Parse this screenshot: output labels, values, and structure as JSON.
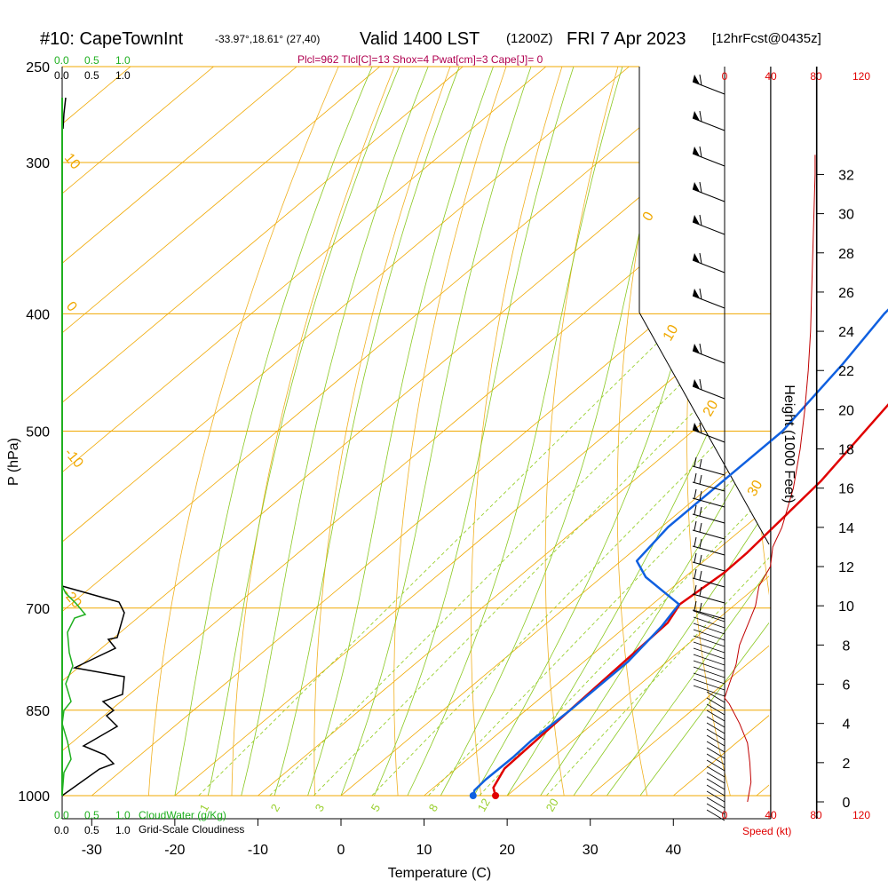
{
  "header": {
    "station": "#10: CapeTownInt",
    "coords": "-33.97°,18.61° (27,40)",
    "valid": "Valid 1400 LST",
    "zulu": "(1200Z)",
    "date": "FRI 7 Apr 2023",
    "fcst": "[12hrFcst@0435z]",
    "indices": "Plcl=962 Tlcl[C]=13 Shox=4 Pwat[cm]=3 Cape[J]= 0"
  },
  "chart_data": {
    "type": "line",
    "title": "#10: CapeTownInt",
    "xlabel": "Temperature (C)",
    "ylabel": "P (hPa)",
    "y2label": "Height (1000 Feet)",
    "x_ticks": [
      "-30",
      "-20",
      "-10",
      "0",
      "10",
      "20",
      "30",
      "40"
    ],
    "x_values": [
      -30,
      -20,
      -10,
      0,
      10,
      20,
      30,
      40
    ],
    "p_ticks": [
      "250",
      "300",
      "400",
      "500",
      "700",
      "850",
      "1000"
    ],
    "p_values": [
      250,
      300,
      400,
      500,
      700,
      850,
      1000
    ],
    "height_ticks": [
      "0",
      "2",
      "4",
      "6",
      "8",
      "10",
      "12",
      "14",
      "16",
      "18",
      "20",
      "22",
      "24",
      "26",
      "28",
      "30",
      "32"
    ],
    "height_values": [
      0,
      2,
      4,
      6,
      8,
      10,
      12,
      14,
      16,
      18,
      20,
      22,
      24,
      26,
      28,
      30,
      32
    ],
    "speed_ticks_top": [
      "0",
      "40",
      "80",
      "120"
    ],
    "speed_ticks_bottom": [
      "0",
      "40",
      "80",
      "120"
    ],
    "speed_label": "Speed (kt)",
    "cloud_top_green": [
      "0.0",
      "0.5",
      "1.0"
    ],
    "cloud_top_black": [
      "0.0",
      "0.5",
      "1.0"
    ],
    "cloud_bottom_green": [
      "0.0",
      "0.5",
      "1.0"
    ],
    "cloud_bottom_black": [
      "0.0",
      "0.5",
      "1.0"
    ],
    "cloudwater_label": "CloudWater (g/Kg)",
    "cloudiness_label": "Grid-Scale Cloudiness",
    "temperature_series": {
      "name": "Temperature",
      "color": "#e00000",
      "points": [
        [
          -2.8,
          270
        ],
        [
          0.0,
          300
        ],
        [
          2.6,
          340
        ],
        [
          6.2,
          400
        ],
        [
          9.5,
          470
        ],
        [
          12.6,
          550
        ],
        [
          14.0,
          630
        ],
        [
          14.1,
          655
        ],
        [
          13.3,
          695
        ],
        [
          14.5,
          720
        ],
        [
          15.8,
          950
        ],
        [
          17.2,
          985
        ],
        [
          18.6,
          1000
        ]
      ]
    },
    "dewpoint_series": {
      "name": "Dewpoint",
      "color": "#1060e0",
      "points": [
        [
          -6.8,
          270
        ],
        [
          -6.5,
          285
        ],
        [
          -6.8,
          300
        ],
        [
          -5.6,
          340
        ],
        [
          -3.8,
          400
        ],
        [
          -1.6,
          440
        ],
        [
          0.8,
          500
        ],
        [
          0.8,
          550
        ],
        [
          0.8,
          600
        ],
        [
          1.9,
          640
        ],
        [
          5.3,
          660
        ],
        [
          13.2,
          695
        ],
        [
          14.3,
          725
        ],
        [
          15.3,
          775
        ],
        [
          15.3,
          850
        ],
        [
          15.0,
          900
        ],
        [
          15.2,
          930
        ],
        [
          15.1,
          970
        ],
        [
          15.3,
          990
        ],
        [
          15.9,
          1000
        ]
      ]
    },
    "isotherm_labels": [
      "0",
      "10",
      "20",
      "30"
    ],
    "dry_adiabat_labels": [
      "10",
      "0",
      "-10",
      "-20"
    ],
    "mixing_ratio_labels": [
      "1",
      "2",
      "3",
      "5",
      "8",
      "12",
      "20"
    ],
    "wind_speed_series": {
      "name": "Speed",
      "color": "#c00000",
      "points": [
        [
          20,
          0
        ],
        [
          23,
          1
        ],
        [
          22,
          2
        ],
        [
          20,
          3
        ],
        [
          13,
          4
        ],
        [
          4,
          5
        ],
        [
          0,
          5.3
        ],
        [
          4,
          6
        ],
        [
          10,
          7
        ],
        [
          13,
          8
        ],
        [
          20,
          9
        ],
        [
          27,
          10
        ],
        [
          30,
          11
        ],
        [
          40,
          12
        ],
        [
          42,
          13
        ],
        [
          50,
          14
        ],
        [
          55,
          15
        ],
        [
          60,
          16
        ],
        [
          63,
          17
        ],
        [
          66,
          18
        ],
        [
          70,
          20
        ],
        [
          73,
          22
        ],
        [
          75,
          24
        ],
        [
          76,
          26
        ],
        [
          77,
          28
        ],
        [
          78,
          30
        ],
        [
          79,
          32
        ],
        [
          79,
          33
        ]
      ]
    },
    "colors": {
      "isotherm": "#f0a800",
      "isobar": "#f0a800",
      "dry_adiabat": "#f0b020",
      "moist_adiabat": "#8ac820",
      "mixing_ratio": "#9ad030",
      "cloudwater": "#20b020",
      "cloudiness": "#000000",
      "speed_axis": "#e00000",
      "indices": "#b00050"
    },
    "x_range": [
      -35,
      35
    ],
    "p_range": [
      250,
      1000
    ],
    "skew": true,
    "grid": true
  }
}
